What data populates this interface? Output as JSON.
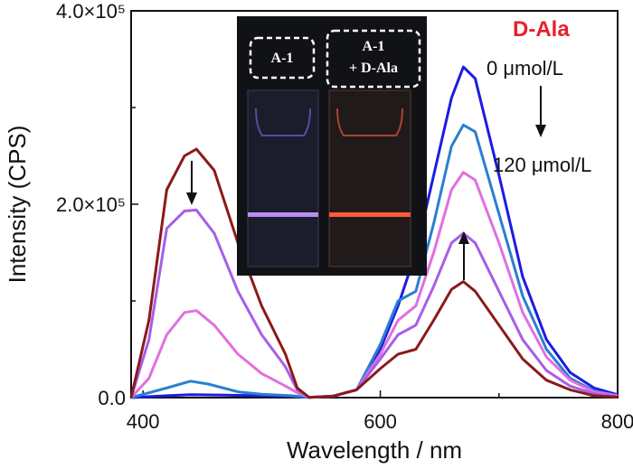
{
  "chart_data": {
    "type": "line",
    "title": "D-Ala",
    "title_color": "#e8202a",
    "xlabel": "Wavelength / nm",
    "ylabel": "Intensity (CPS)",
    "xlim": [
      390,
      800
    ],
    "ylim": [
      0,
      400000
    ],
    "x_ticks": [
      "400",
      "600",
      "800"
    ],
    "y_ticks": [
      "0.0",
      "2.0×10⁵",
      "4.0×10⁵"
    ],
    "grid": false,
    "concentration_start": "0 μmol/L",
    "concentration_end": "120 μmol/L",
    "inset": {
      "label_left": "A-1",
      "label_right_line1": "A-1",
      "label_right_line2": "+ D-Ala"
    },
    "series": [
      {
        "color": "#1c1ce0",
        "values": [
          [
            390,
            0
          ],
          [
            420,
            2000
          ],
          [
            440,
            3000
          ],
          [
            470,
            2500
          ],
          [
            500,
            2000
          ],
          [
            525,
            1500
          ],
          [
            540,
            300
          ],
          [
            560,
            1500
          ],
          [
            580,
            8000
          ],
          [
            600,
            50000
          ],
          [
            615,
            95000
          ],
          [
            630,
            150000
          ],
          [
            645,
            230000
          ],
          [
            660,
            310000
          ],
          [
            670,
            342000
          ],
          [
            680,
            330000
          ],
          [
            700,
            230000
          ],
          [
            720,
            125000
          ],
          [
            740,
            60000
          ],
          [
            760,
            26000
          ],
          [
            780,
            10000
          ],
          [
            800,
            3000
          ]
        ]
      },
      {
        "color": "#2a7fd0",
        "values": [
          [
            390,
            0
          ],
          [
            420,
            10000
          ],
          [
            440,
            17000
          ],
          [
            455,
            14000
          ],
          [
            480,
            6000
          ],
          [
            500,
            3500
          ],
          [
            525,
            2000
          ],
          [
            540,
            300
          ],
          [
            560,
            1500
          ],
          [
            580,
            8000
          ],
          [
            600,
            55000
          ],
          [
            615,
            100000
          ],
          [
            630,
            110000
          ],
          [
            645,
            180000
          ],
          [
            660,
            260000
          ],
          [
            670,
            282000
          ],
          [
            680,
            275000
          ],
          [
            700,
            190000
          ],
          [
            720,
            105000
          ],
          [
            740,
            50000
          ],
          [
            760,
            20000
          ],
          [
            780,
            7000
          ],
          [
            800,
            2000
          ]
        ]
      },
      {
        "color": "#e070e0",
        "values": [
          [
            390,
            0
          ],
          [
            405,
            20000
          ],
          [
            420,
            65000
          ],
          [
            435,
            88000
          ],
          [
            445,
            90000
          ],
          [
            460,
            75000
          ],
          [
            480,
            45000
          ],
          [
            500,
            25000
          ],
          [
            520,
            12000
          ],
          [
            530,
            5000
          ],
          [
            540,
            300
          ],
          [
            560,
            1500
          ],
          [
            580,
            8000
          ],
          [
            600,
            45000
          ],
          [
            615,
            80000
          ],
          [
            630,
            95000
          ],
          [
            645,
            150000
          ],
          [
            660,
            215000
          ],
          [
            670,
            233000
          ],
          [
            680,
            225000
          ],
          [
            700,
            160000
          ],
          [
            720,
            88000
          ],
          [
            740,
            42000
          ],
          [
            760,
            18000
          ],
          [
            780,
            6000
          ],
          [
            800,
            2000
          ]
        ]
      },
      {
        "color": "#a85ee8",
        "values": [
          [
            390,
            0
          ],
          [
            405,
            60000
          ],
          [
            420,
            175000
          ],
          [
            435,
            193000
          ],
          [
            445,
            194000
          ],
          [
            460,
            170000
          ],
          [
            480,
            110000
          ],
          [
            500,
            65000
          ],
          [
            520,
            32000
          ],
          [
            530,
            8000
          ],
          [
            540,
            300
          ],
          [
            560,
            1500
          ],
          [
            580,
            8000
          ],
          [
            600,
            40000
          ],
          [
            615,
            65000
          ],
          [
            630,
            75000
          ],
          [
            645,
            115000
          ],
          [
            660,
            160000
          ],
          [
            670,
            170000
          ],
          [
            680,
            160000
          ],
          [
            700,
            110000
          ],
          [
            720,
            60000
          ],
          [
            740,
            28000
          ],
          [
            760,
            12000
          ],
          [
            780,
            4000
          ],
          [
            800,
            1000
          ]
        ]
      },
      {
        "color": "#8b1a1a",
        "values": [
          [
            390,
            0
          ],
          [
            405,
            80000
          ],
          [
            420,
            215000
          ],
          [
            435,
            250000
          ],
          [
            445,
            257000
          ],
          [
            460,
            235000
          ],
          [
            480,
            160000
          ],
          [
            500,
            95000
          ],
          [
            520,
            45000
          ],
          [
            530,
            10000
          ],
          [
            540,
            300
          ],
          [
            560,
            1500
          ],
          [
            580,
            8000
          ],
          [
            600,
            30000
          ],
          [
            615,
            45000
          ],
          [
            630,
            50000
          ],
          [
            645,
            80000
          ],
          [
            660,
            112000
          ],
          [
            670,
            120000
          ],
          [
            680,
            110000
          ],
          [
            700,
            75000
          ],
          [
            720,
            40000
          ],
          [
            740,
            18000
          ],
          [
            760,
            8000
          ],
          [
            780,
            2000
          ],
          [
            800,
            500
          ]
        ]
      }
    ]
  }
}
